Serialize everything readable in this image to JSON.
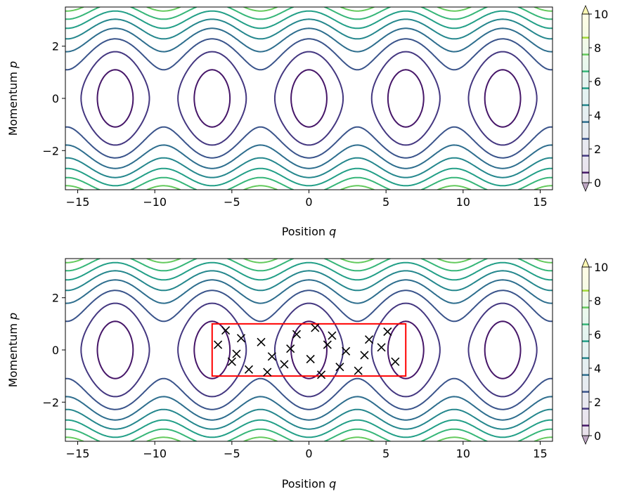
{
  "chart_data": [
    {
      "type": "contour",
      "name": "top",
      "function": "H(q,p) = p^2/2 + 1 - cos(q)",
      "xlabel": "Position",
      "xlabel_var": "q",
      "ylabel": "Momentum",
      "ylabel_var": "p",
      "xlim": [
        -15.8,
        15.8
      ],
      "ylim": [
        -3.5,
        3.5
      ],
      "xticks": [
        -15,
        -10,
        -5,
        0,
        5,
        10,
        15
      ],
      "xtick_labels": [
        "−15",
        "−10",
        "−5",
        "0",
        "5",
        "10",
        "15"
      ],
      "yticks": [
        -2,
        0,
        2
      ],
      "ytick_labels": [
        "−2",
        "0",
        "2"
      ],
      "contour_levels": [
        0.6,
        1.6,
        2.6,
        3.6,
        4.6,
        5.6,
        6.6,
        7.6,
        8.6
      ],
      "colormap": "viridis",
      "colorbar": {
        "range": [
          0,
          10
        ],
        "ticks": [
          0,
          2,
          4,
          6,
          8,
          10
        ],
        "tick_labels": [
          "0",
          "2",
          "4",
          "6",
          "8",
          "10"
        ],
        "extend": "both"
      },
      "rectangle": null,
      "points": []
    },
    {
      "type": "contour",
      "name": "bottom",
      "function": "H(q,p) = p^2/2 + 1 - cos(q)",
      "xlabel": "Position",
      "xlabel_var": "q",
      "ylabel": "Momentum",
      "ylabel_var": "p",
      "xlim": [
        -15.8,
        15.8
      ],
      "ylim": [
        -3.5,
        3.5
      ],
      "xticks": [
        -15,
        -10,
        -5,
        0,
        5,
        10,
        15
      ],
      "xtick_labels": [
        "−15",
        "−10",
        "−5",
        "0",
        "5",
        "10",
        "15"
      ],
      "yticks": [
        -2,
        0,
        2
      ],
      "ytick_labels": [
        "−2",
        "0",
        "2"
      ],
      "contour_levels": [
        0.6,
        1.6,
        2.6,
        3.6,
        4.6,
        5.6,
        6.6,
        7.6,
        8.6
      ],
      "colormap": "viridis",
      "colorbar": {
        "range": [
          0,
          10
        ],
        "ticks": [
          0,
          2,
          4,
          6,
          8,
          10
        ],
        "tick_labels": [
          "0",
          "2",
          "4",
          "6",
          "8",
          "10"
        ],
        "extend": "both"
      },
      "rectangle": {
        "q": [
          -6.28,
          6.28
        ],
        "p": [
          -1.0,
          1.0
        ],
        "color": "#ff0000"
      },
      "points": [
        [
          -5.4,
          0.75
        ],
        [
          -5.9,
          0.2
        ],
        [
          -5.0,
          -0.45
        ],
        [
          -4.7,
          -0.15
        ],
        [
          -4.4,
          0.45
        ],
        [
          -3.9,
          -0.75
        ],
        [
          -3.1,
          0.3
        ],
        [
          -2.7,
          -0.85
        ],
        [
          -2.4,
          -0.25
        ],
        [
          -1.6,
          -0.55
        ],
        [
          -1.2,
          0.05
        ],
        [
          -0.8,
          0.6
        ],
        [
          0.1,
          -0.35
        ],
        [
          0.4,
          0.85
        ],
        [
          0.8,
          -0.95
        ],
        [
          1.2,
          0.2
        ],
        [
          1.5,
          0.55
        ],
        [
          2.0,
          -0.65
        ],
        [
          2.4,
          -0.05
        ],
        [
          3.2,
          -0.8
        ],
        [
          3.6,
          -0.2
        ],
        [
          3.9,
          0.4
        ],
        [
          4.7,
          0.1
        ],
        [
          5.1,
          0.7
        ],
        [
          5.6,
          -0.45
        ]
      ],
      "point_color": "#000000"
    }
  ]
}
